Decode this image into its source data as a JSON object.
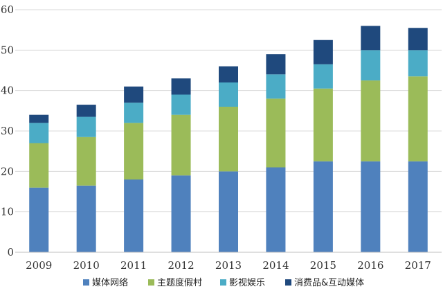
{
  "chart_data": {
    "type": "bar",
    "stacked": true,
    "categories": [
      "2009",
      "2010",
      "2011",
      "2012",
      "2013",
      "2014",
      "2015",
      "2016",
      "2017"
    ],
    "series": [
      {
        "name": "媒体网络",
        "color": "#4f81bd",
        "values": [
          16,
          16.5,
          18,
          19,
          20,
          21,
          22.5,
          22.5,
          22.5
        ]
      },
      {
        "name": "主题度假村",
        "color": "#9bbb59",
        "values": [
          11,
          12,
          14,
          15,
          16,
          17,
          18,
          20,
          21
        ]
      },
      {
        "name": "影视娱乐",
        "color": "#4bacc6",
        "values": [
          5,
          5,
          5,
          5,
          6,
          6,
          6,
          7.5,
          6.5
        ]
      },
      {
        "name": "消费品&互动媒体",
        "color": "#1f497d",
        "values": [
          2,
          3,
          4,
          4,
          4,
          5,
          6,
          6,
          5.5
        ]
      }
    ],
    "ylim": [
      0,
      60
    ],
    "yticks": [
      "0",
      "10",
      "20",
      "30",
      "40",
      "50",
      "60"
    ],
    "xlabel": "",
    "ylabel": "",
    "grid": true,
    "legend_position": "bottom"
  }
}
